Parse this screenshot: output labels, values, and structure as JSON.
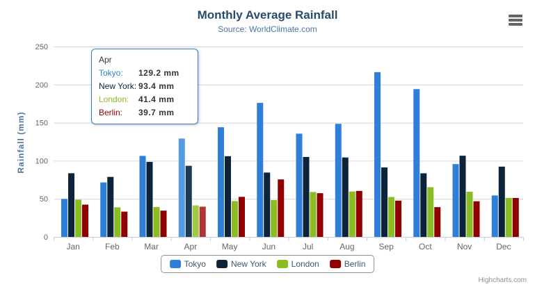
{
  "header": {
    "title": "Monthly Average Rainfall",
    "subtitle": "Source: WorldClimate.com"
  },
  "icons": {
    "context_menu": "hamburger"
  },
  "credits": "Highcharts.com",
  "tooltip": {
    "header": "Apr",
    "border_color": "#2f7ed8",
    "rows": [
      {
        "label": "Tokyo:",
        "value": "129.2 mm",
        "color": "#2f7ed8"
      },
      {
        "label": "New York:",
        "value": "93.4 mm",
        "color": "#0d233a"
      },
      {
        "label": "London:",
        "value": "41.4 mm",
        "color": "#8bbc21"
      },
      {
        "label": "Berlin:",
        "value": "39.7 mm",
        "color": "#910000"
      }
    ]
  },
  "legend": {
    "items": [
      {
        "label": "Tokyo",
        "color": "#2f7ed8"
      },
      {
        "label": "New York",
        "color": "#0d233a"
      },
      {
        "label": "London",
        "color": "#8bbc21"
      },
      {
        "label": "Berlin",
        "color": "#910000"
      }
    ]
  },
  "chart_data": {
    "type": "bar",
    "title": "Monthly Average Rainfall",
    "subtitle": "Source: WorldClimate.com",
    "xlabel": "",
    "ylabel": "Rainfall (mm)",
    "ylim": [
      0,
      250
    ],
    "yticks": [
      0,
      50,
      100,
      150,
      200,
      250
    ],
    "grid": true,
    "legend_position": "bottom",
    "highlight_category": "Apr",
    "categories": [
      "Jan",
      "Feb",
      "Mar",
      "Apr",
      "May",
      "Jun",
      "Jul",
      "Aug",
      "Sep",
      "Oct",
      "Nov",
      "Dec"
    ],
    "series": [
      {
        "name": "Tokyo",
        "color": "#2f7ed8",
        "hover_color": "#549ce2",
        "values": [
          49.9,
          71.5,
          106.4,
          129.2,
          144.0,
          176.0,
          135.6,
          148.5,
          216.4,
          194.1,
          95.6,
          54.4
        ]
      },
      {
        "name": "New York",
        "color": "#0d233a",
        "hover_color": "#1b3a57",
        "values": [
          83.6,
          78.8,
          98.5,
          93.4,
          106.0,
          84.5,
          105.0,
          104.3,
          91.2,
          83.5,
          106.6,
          92.3
        ]
      },
      {
        "name": "London",
        "color": "#8bbc21",
        "hover_color": "#a2cb43",
        "values": [
          48.9,
          38.8,
          39.3,
          41.4,
          47.0,
          48.3,
          59.0,
          59.6,
          52.4,
          65.2,
          59.3,
          51.2
        ]
      },
      {
        "name": "Berlin",
        "color": "#910000",
        "hover_color": "#b23535",
        "values": [
          42.4,
          33.2,
          34.5,
          39.7,
          52.6,
          75.5,
          57.4,
          60.4,
          47.6,
          39.1,
          46.8,
          51.1
        ]
      }
    ]
  }
}
